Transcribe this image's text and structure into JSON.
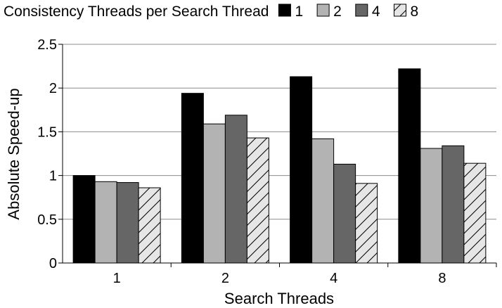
{
  "chart_data": {
    "type": "bar",
    "legend_title": "Consistency Threads per Search Thread",
    "legend_placement": "top",
    "categories": [
      "1",
      "2",
      "4",
      "8"
    ],
    "series": [
      {
        "name": "1",
        "color": "#000000",
        "pattern": "solid",
        "values": [
          1.0,
          1.94,
          2.13,
          2.22
        ]
      },
      {
        "name": "2",
        "color": "#b3b3b3",
        "pattern": "solid",
        "values": [
          0.93,
          1.59,
          1.42,
          1.31
        ]
      },
      {
        "name": "4",
        "color": "#666666",
        "pattern": "solid",
        "values": [
          0.92,
          1.69,
          1.13,
          1.34
        ]
      },
      {
        "name": "8",
        "color": "#e6e6e6",
        "pattern": "diagonal-hatch",
        "values": [
          0.86,
          1.43,
          0.91,
          1.14
        ]
      }
    ],
    "xlabel": "Search Threads",
    "ylabel": "Absolute Speed-up",
    "ylim": [
      0,
      2.5
    ],
    "yticks": [
      0,
      0.5,
      1,
      1.5,
      2,
      2.5
    ],
    "ytick_labels": [
      "0",
      "0.5",
      "1",
      "1.5",
      "2",
      "2.5"
    ],
    "grid": true
  }
}
